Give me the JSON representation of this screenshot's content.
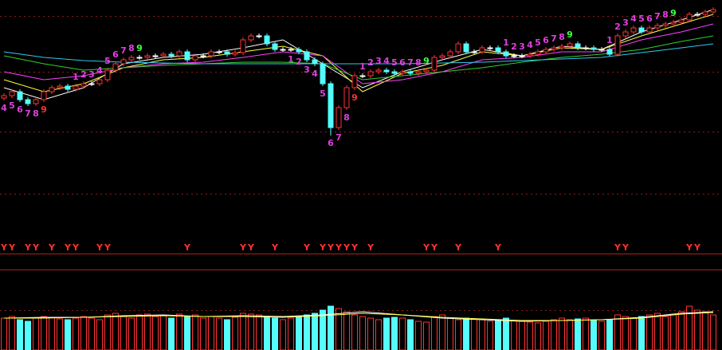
{
  "chart_data": [
    {
      "type": "candlestick",
      "up_color": "#ff3232",
      "down_color": "#54fcfc",
      "doji_color": "#ffffff",
      "grid_color": "#8a1c1c",
      "ylim": [
        0,
        243
      ],
      "yticks": [
        223,
        153,
        78,
        0
      ],
      "open": [
        120,
        123,
        128,
        118,
        113,
        118,
        128,
        133,
        135,
        131,
        135,
        138,
        138,
        143,
        155,
        163,
        168,
        171,
        171,
        173,
        173,
        175,
        173,
        178,
        168,
        173,
        173,
        178,
        178,
        175,
        177,
        193,
        198,
        198,
        188,
        181,
        181,
        181,
        178,
        168,
        163,
        138,
        83,
        108,
        133,
        148,
        148,
        153,
        155,
        153,
        151,
        153,
        151,
        153,
        155,
        171,
        173,
        178,
        188,
        178,
        178,
        183,
        183,
        178,
        173,
        173,
        173,
        175,
        178,
        181,
        183,
        185,
        188,
        183,
        183,
        181,
        181,
        175,
        198,
        203,
        208,
        203,
        208,
        211,
        213,
        215,
        218,
        225,
        225,
        228
      ],
      "high": [
        126,
        131,
        131,
        121,
        121,
        131,
        136,
        138,
        138,
        138,
        141,
        141,
        146,
        158,
        166,
        171,
        174,
        174,
        176,
        176,
        178,
        178,
        181,
        181,
        176,
        176,
        181,
        181,
        181,
        180,
        196,
        201,
        201,
        201,
        191,
        184,
        184,
        184,
        181,
        171,
        166,
        141,
        111,
        136,
        151,
        151,
        156,
        158,
        158,
        156,
        156,
        156,
        156,
        158,
        174,
        176,
        181,
        191,
        191,
        181,
        186,
        186,
        186,
        181,
        176,
        176,
        178,
        181,
        184,
        186,
        188,
        191,
        191,
        186,
        186,
        184,
        184,
        201,
        206,
        211,
        211,
        211,
        214,
        216,
        218,
        221,
        228,
        228,
        231,
        234
      ],
      "low": [
        117,
        120,
        115,
        110,
        110,
        115,
        125,
        130,
        128,
        128,
        132,
        135,
        135,
        140,
        152,
        160,
        165,
        168,
        168,
        170,
        170,
        170,
        170,
        165,
        165,
        170,
        170,
        175,
        172,
        172,
        174,
        190,
        195,
        185,
        178,
        178,
        178,
        175,
        165,
        160,
        135,
        73,
        80,
        105,
        130,
        145,
        145,
        150,
        150,
        148,
        148,
        148,
        148,
        150,
        152,
        168,
        170,
        175,
        175,
        175,
        175,
        180,
        175,
        170,
        170,
        170,
        170,
        172,
        175,
        178,
        180,
        182,
        180,
        180,
        178,
        178,
        172,
        172,
        195,
        200,
        200,
        200,
        205,
        208,
        210,
        212,
        215,
        222,
        222,
        225
      ],
      "close": [
        123,
        128,
        118,
        113,
        118,
        128,
        133,
        135,
        131,
        135,
        138,
        138,
        143,
        155,
        163,
        168,
        171,
        171,
        173,
        173,
        175,
        173,
        178,
        168,
        173,
        173,
        178,
        178,
        175,
        177,
        193,
        198,
        198,
        188,
        181,
        181,
        181,
        178,
        168,
        163,
        138,
        83,
        108,
        133,
        148,
        148,
        153,
        155,
        153,
        151,
        153,
        151,
        153,
        155,
        171,
        173,
        178,
        188,
        178,
        178,
        183,
        183,
        178,
        173,
        173,
        173,
        175,
        178,
        181,
        183,
        185,
        188,
        183,
        183,
        181,
        181,
        175,
        198,
        203,
        208,
        203,
        208,
        211,
        213,
        215,
        218,
        225,
        225,
        228,
        231
      ],
      "ma_x": [
        0,
        5,
        10,
        15,
        20,
        25,
        30,
        35,
        40,
        45,
        50,
        55,
        60,
        65,
        70,
        75,
        80,
        85,
        89
      ],
      "series": [
        {
          "color": "#ffffff",
          "values": [
            133,
            118,
            133,
            163,
            171,
            175,
            183,
            193,
            163,
            133,
            153,
            168,
            181,
            173,
            185,
            181,
            203,
            218,
            231
          ]
        },
        {
          "color": "#ffff40",
          "values": [
            143,
            128,
            138,
            158,
            168,
            171,
            178,
            185,
            173,
            128,
            151,
            161,
            178,
            173,
            183,
            181,
            198,
            213,
            225
          ]
        },
        {
          "color": "#ff40ff",
          "values": [
            153,
            143,
            148,
            158,
            163,
            165,
            171,
            178,
            173,
            138,
            143,
            153,
            168,
            171,
            178,
            178,
            193,
            203,
            213
          ]
        },
        {
          "color": "#30d030",
          "values": [
            173,
            163,
            155,
            158,
            161,
            163,
            165,
            165,
            163,
            143,
            148,
            153,
            158,
            165,
            171,
            175,
            181,
            191,
            198
          ]
        },
        {
          "color": "#30c8f0",
          "values": [
            178,
            171,
            167,
            165,
            164,
            163,
            163,
            163,
            163,
            163,
            163,
            164,
            165,
            167,
            169,
            171,
            177,
            183,
            188
          ]
        }
      ],
      "td_labels": [
        {
          "index": 0,
          "text": "4",
          "color": "#e040e0",
          "side": "below"
        },
        {
          "index": 1,
          "text": "5",
          "color": "#e040e0",
          "side": "below"
        },
        {
          "index": 2,
          "text": "6",
          "color": "#e040e0",
          "side": "below"
        },
        {
          "index": 3,
          "text": "7",
          "color": "#e040e0",
          "side": "below"
        },
        {
          "index": 4,
          "text": "8",
          "color": "#e040e0",
          "side": "below"
        },
        {
          "index": 5,
          "text": "9",
          "color": "#ff3232",
          "side": "below"
        },
        {
          "index": 9,
          "text": "1",
          "color": "#e040e0",
          "side": "above"
        },
        {
          "index": 10,
          "text": "2",
          "color": "#e040e0",
          "side": "above"
        },
        {
          "index": 11,
          "text": "3",
          "color": "#e040e0",
          "side": "above"
        },
        {
          "index": 12,
          "text": "4",
          "color": "#e040e0",
          "side": "above"
        },
        {
          "index": 13,
          "text": "5",
          "color": "#e040e0",
          "side": "above"
        },
        {
          "index": 14,
          "text": "6",
          "color": "#e040e0",
          "side": "above"
        },
        {
          "index": 15,
          "text": "7",
          "color": "#e040e0",
          "side": "above"
        },
        {
          "index": 16,
          "text": "8",
          "color": "#e040e0",
          "side": "above"
        },
        {
          "index": 17,
          "text": "9",
          "color": "#40ff40",
          "side": "above"
        },
        {
          "index": 36,
          "text": "1",
          "color": "#e040e0",
          "side": "below"
        },
        {
          "index": 37,
          "text": "2",
          "color": "#e040e0",
          "side": "below"
        },
        {
          "index": 38,
          "text": "3",
          "color": "#e040e0",
          "side": "below"
        },
        {
          "index": 39,
          "text": "4",
          "color": "#e040e0",
          "side": "below"
        },
        {
          "index": 40,
          "text": "5",
          "color": "#e040e0",
          "side": "below"
        },
        {
          "index": 41,
          "text": "6",
          "color": "#e040e0",
          "side": "below"
        },
        {
          "index": 42,
          "text": "7",
          "color": "#e040e0",
          "side": "below"
        },
        {
          "index": 43,
          "text": "8",
          "color": "#e040e0",
          "side": "below"
        },
        {
          "index": 44,
          "text": "9",
          "color": "#ff3232",
          "side": "below"
        },
        {
          "index": 45,
          "text": "1",
          "color": "#e040e0",
          "side": "above"
        },
        {
          "index": 46,
          "text": "2",
          "color": "#e040e0",
          "side": "above"
        },
        {
          "index": 47,
          "text": "3",
          "color": "#e040e0",
          "side": "above"
        },
        {
          "index": 48,
          "text": "4",
          "color": "#e040e0",
          "side": "above"
        },
        {
          "index": 49,
          "text": "5",
          "color": "#e040e0",
          "side": "above"
        },
        {
          "index": 50,
          "text": "6",
          "color": "#e040e0",
          "side": "above"
        },
        {
          "index": 51,
          "text": "7",
          "color": "#e040e0",
          "side": "above"
        },
        {
          "index": 52,
          "text": "8",
          "color": "#e040e0",
          "side": "above"
        },
        {
          "index": 53,
          "text": "9",
          "color": "#40ff40",
          "side": "above"
        },
        {
          "index": 63,
          "text": "1",
          "color": "#e040e0",
          "side": "above"
        },
        {
          "index": 64,
          "text": "2",
          "color": "#e040e0",
          "side": "above"
        },
        {
          "index": 65,
          "text": "3",
          "color": "#e040e0",
          "side": "above"
        },
        {
          "index": 66,
          "text": "4",
          "color": "#e040e0",
          "side": "above"
        },
        {
          "index": 67,
          "text": "5",
          "color": "#e040e0",
          "side": "above"
        },
        {
          "index": 68,
          "text": "6",
          "color": "#e040e0",
          "side": "above"
        },
        {
          "index": 69,
          "text": "7",
          "color": "#e040e0",
          "side": "above"
        },
        {
          "index": 70,
          "text": "8",
          "color": "#e040e0",
          "side": "above"
        },
        {
          "index": 71,
          "text": "9",
          "color": "#40ff40",
          "side": "above"
        },
        {
          "index": 76,
          "text": "1",
          "color": "#e040e0",
          "side": "above"
        },
        {
          "index": 77,
          "text": "2",
          "color": "#e040e0",
          "side": "above"
        },
        {
          "index": 78,
          "text": "3",
          "color": "#e040e0",
          "side": "above"
        },
        {
          "index": 79,
          "text": "4",
          "color": "#e040e0",
          "side": "above"
        },
        {
          "index": 80,
          "text": "5",
          "color": "#e040e0",
          "side": "above"
        },
        {
          "index": 81,
          "text": "6",
          "color": "#e040e0",
          "side": "above"
        },
        {
          "index": 82,
          "text": "7",
          "color": "#e040e0",
          "side": "above"
        },
        {
          "index": 83,
          "text": "8",
          "color": "#e040e0",
          "side": "above"
        },
        {
          "index": 84,
          "text": "9",
          "color": "#40ff40",
          "side": "above"
        }
      ],
      "signal_label": "Y",
      "signal_color": "#ff3232",
      "signal_indices": [
        0,
        1,
        3,
        4,
        6,
        8,
        9,
        12,
        13,
        23,
        30,
        31,
        34,
        38,
        40,
        41,
        42,
        43,
        44,
        46,
        53,
        54,
        57,
        62,
        77,
        78,
        86,
        87
      ]
    },
    {
      "type": "bar",
      "grid_color": "#8a1c1c",
      "ylim": [
        0,
        100
      ],
      "yticks": [
        50
      ],
      "values": [
        40,
        42,
        38,
        36,
        40,
        42,
        41,
        39,
        38,
        40,
        42,
        40,
        38,
        44,
        46,
        42,
        40,
        44,
        45,
        42,
        43,
        40,
        45,
        42,
        44,
        40,
        42,
        40,
        38,
        41,
        46,
        45,
        44,
        42,
        40,
        38,
        40,
        42,
        44,
        46,
        50,
        55,
        52,
        48,
        44,
        42,
        40,
        38,
        40,
        41,
        40,
        38,
        36,
        35,
        42,
        44,
        40,
        38,
        40,
        39,
        38,
        36,
        38,
        40,
        37,
        36,
        35,
        34,
        36,
        38,
        40,
        38,
        39,
        40,
        37,
        36,
        38,
        44,
        42,
        40,
        42,
        44,
        46,
        42,
        45,
        48,
        55,
        50,
        48,
        44
      ],
      "ma_x": [
        0,
        5,
        10,
        15,
        20,
        25,
        30,
        35,
        40,
        45,
        50,
        55,
        60,
        65,
        70,
        75,
        80,
        85,
        89
      ],
      "series": [
        {
          "color": "#ffffff",
          "values": [
            40,
            41,
            41,
            43,
            44,
            42,
            43,
            42,
            44,
            48,
            44,
            40,
            38,
            36,
            37,
            38,
            41,
            46,
            48
          ]
        },
        {
          "color": "#ffff40",
          "values": [
            40,
            40,
            41,
            42,
            43,
            42,
            42,
            41,
            43,
            46,
            44,
            41,
            39,
            37,
            37,
            38,
            40,
            45,
            47
          ]
        }
      ]
    }
  ]
}
